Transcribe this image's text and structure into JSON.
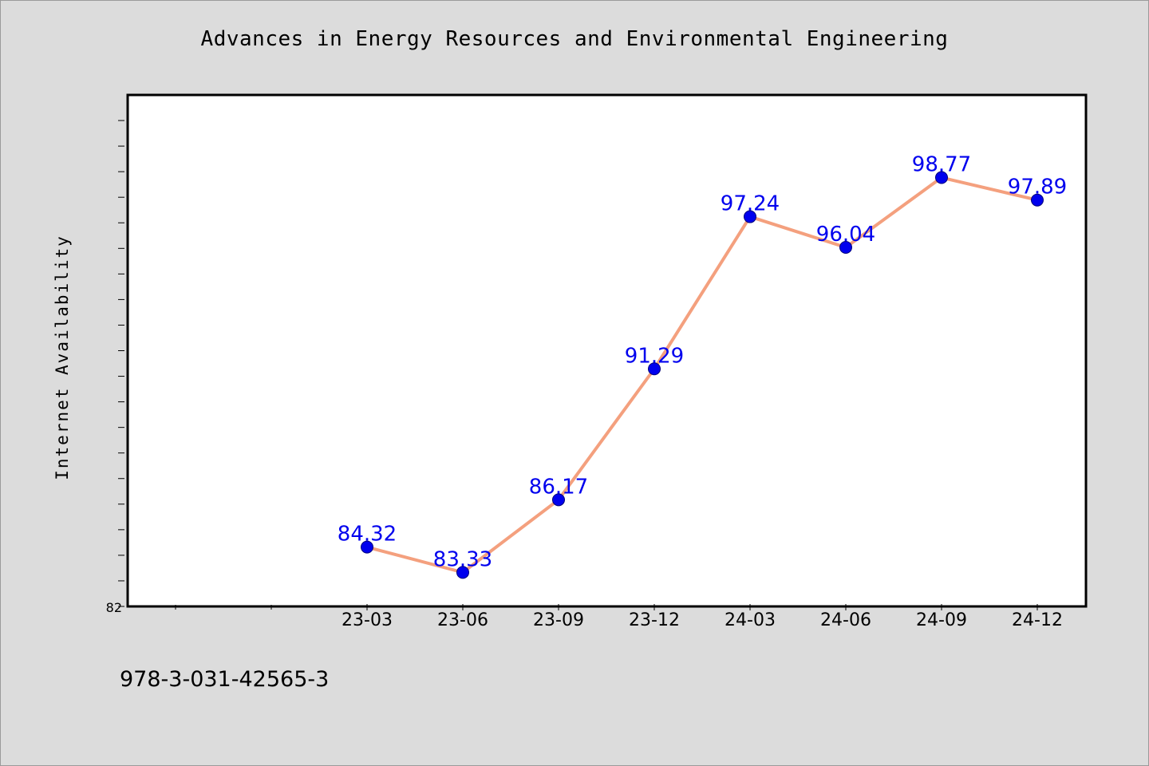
{
  "chart_data": {
    "type": "line",
    "title": "Advances in Energy Resources and Environmental Engineering",
    "xlabel": "",
    "ylabel": "Internet Availability",
    "categories": [
      "23-03",
      "23-06",
      "23-09",
      "23-12",
      "24-03",
      "24-06",
      "24-09",
      "24-12"
    ],
    "series": [
      {
        "values": [
          84.32,
          83.33,
          86.17,
          91.29,
          97.24,
          96.04,
          98.77,
          97.89
        ]
      }
    ],
    "ylim": [
      82,
      102
    ],
    "y_tick_labels": [
      "82"
    ],
    "grid": false,
    "legend": "none",
    "data_labels": true
  },
  "footer": {
    "code": "978-3-031-42565-3"
  },
  "colors": {
    "background": "#dcdcdc",
    "plot_area": "#ffffff",
    "line": "#f4a07e",
    "marker": "#0000ee",
    "data_label": "#0000ee"
  }
}
